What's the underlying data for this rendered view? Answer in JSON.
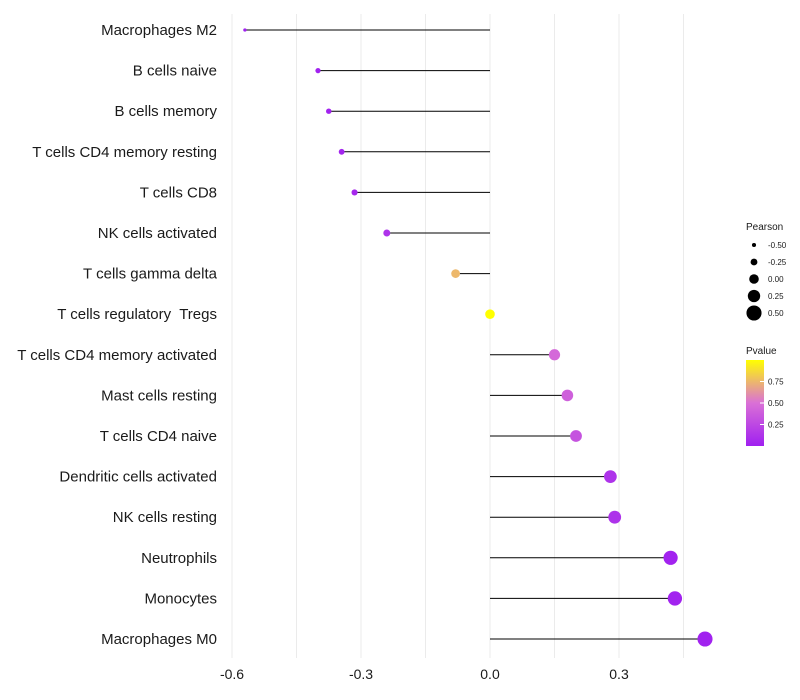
{
  "chart_data": {
    "type": "lollipop",
    "xlabel": "",
    "ylabel": "",
    "xlim": [
      -0.6,
      0.5
    ],
    "xticks": [
      -0.6,
      -0.3,
      0.0,
      0.3
    ],
    "xtick_labels": [
      "-0.6",
      "-0.3",
      "0.0",
      "0.3"
    ],
    "grid": true,
    "points": [
      {
        "label": "Macrophages M2",
        "value": -0.57,
        "pvalue": 0.0
      },
      {
        "label": "B cells naive",
        "value": -0.4,
        "pvalue": 0.01
      },
      {
        "label": "B cells memory",
        "value": -0.375,
        "pvalue": 0.02
      },
      {
        "label": "T cells CD4 memory resting",
        "value": -0.345,
        "pvalue": 0.03
      },
      {
        "label": "T cells CD8",
        "value": -0.315,
        "pvalue": 0.05
      },
      {
        "label": "NK cells activated",
        "value": -0.24,
        "pvalue": 0.12
      },
      {
        "label": "T cells gamma delta",
        "value": -0.08,
        "pvalue": 0.75
      },
      {
        "label": "T cells regulatory  Tregs",
        "value": 0.0,
        "pvalue": 1.0
      },
      {
        "label": "T cells CD4 memory activated",
        "value": 0.15,
        "pvalue": 0.45
      },
      {
        "label": "Mast cells resting",
        "value": 0.18,
        "pvalue": 0.4
      },
      {
        "label": "T cells CD4 naive",
        "value": 0.2,
        "pvalue": 0.32
      },
      {
        "label": "Dendritic cells activated",
        "value": 0.28,
        "pvalue": 0.12
      },
      {
        "label": "NK cells resting",
        "value": 0.29,
        "pvalue": 0.11
      },
      {
        "label": "Neutrophils",
        "value": 0.42,
        "pvalue": 0.02
      },
      {
        "label": "Monocytes",
        "value": 0.43,
        "pvalue": 0.02
      },
      {
        "label": "Macrophages M0",
        "value": 0.5,
        "pvalue": 0.01
      }
    ],
    "legend_size": {
      "title": "Pearson",
      "placement": "right",
      "breaks": [
        -0.5,
        -0.25,
        0.0,
        0.25,
        0.5
      ],
      "labels": [
        "-0.50",
        "-0.25",
        "0.00",
        "0.25",
        "0.50"
      ]
    },
    "legend_color": {
      "title": "Pvalue",
      "placement": "right",
      "breaks": [
        0.25,
        0.5,
        0.75
      ],
      "labels": [
        "0.25",
        "0.50",
        "0.75"
      ],
      "range": [
        0,
        1
      ],
      "low_color": "#a020f0",
      "high_color": "#ffff00"
    },
    "stem_color": "#000000",
    "grid_color": "#ebebeb"
  }
}
